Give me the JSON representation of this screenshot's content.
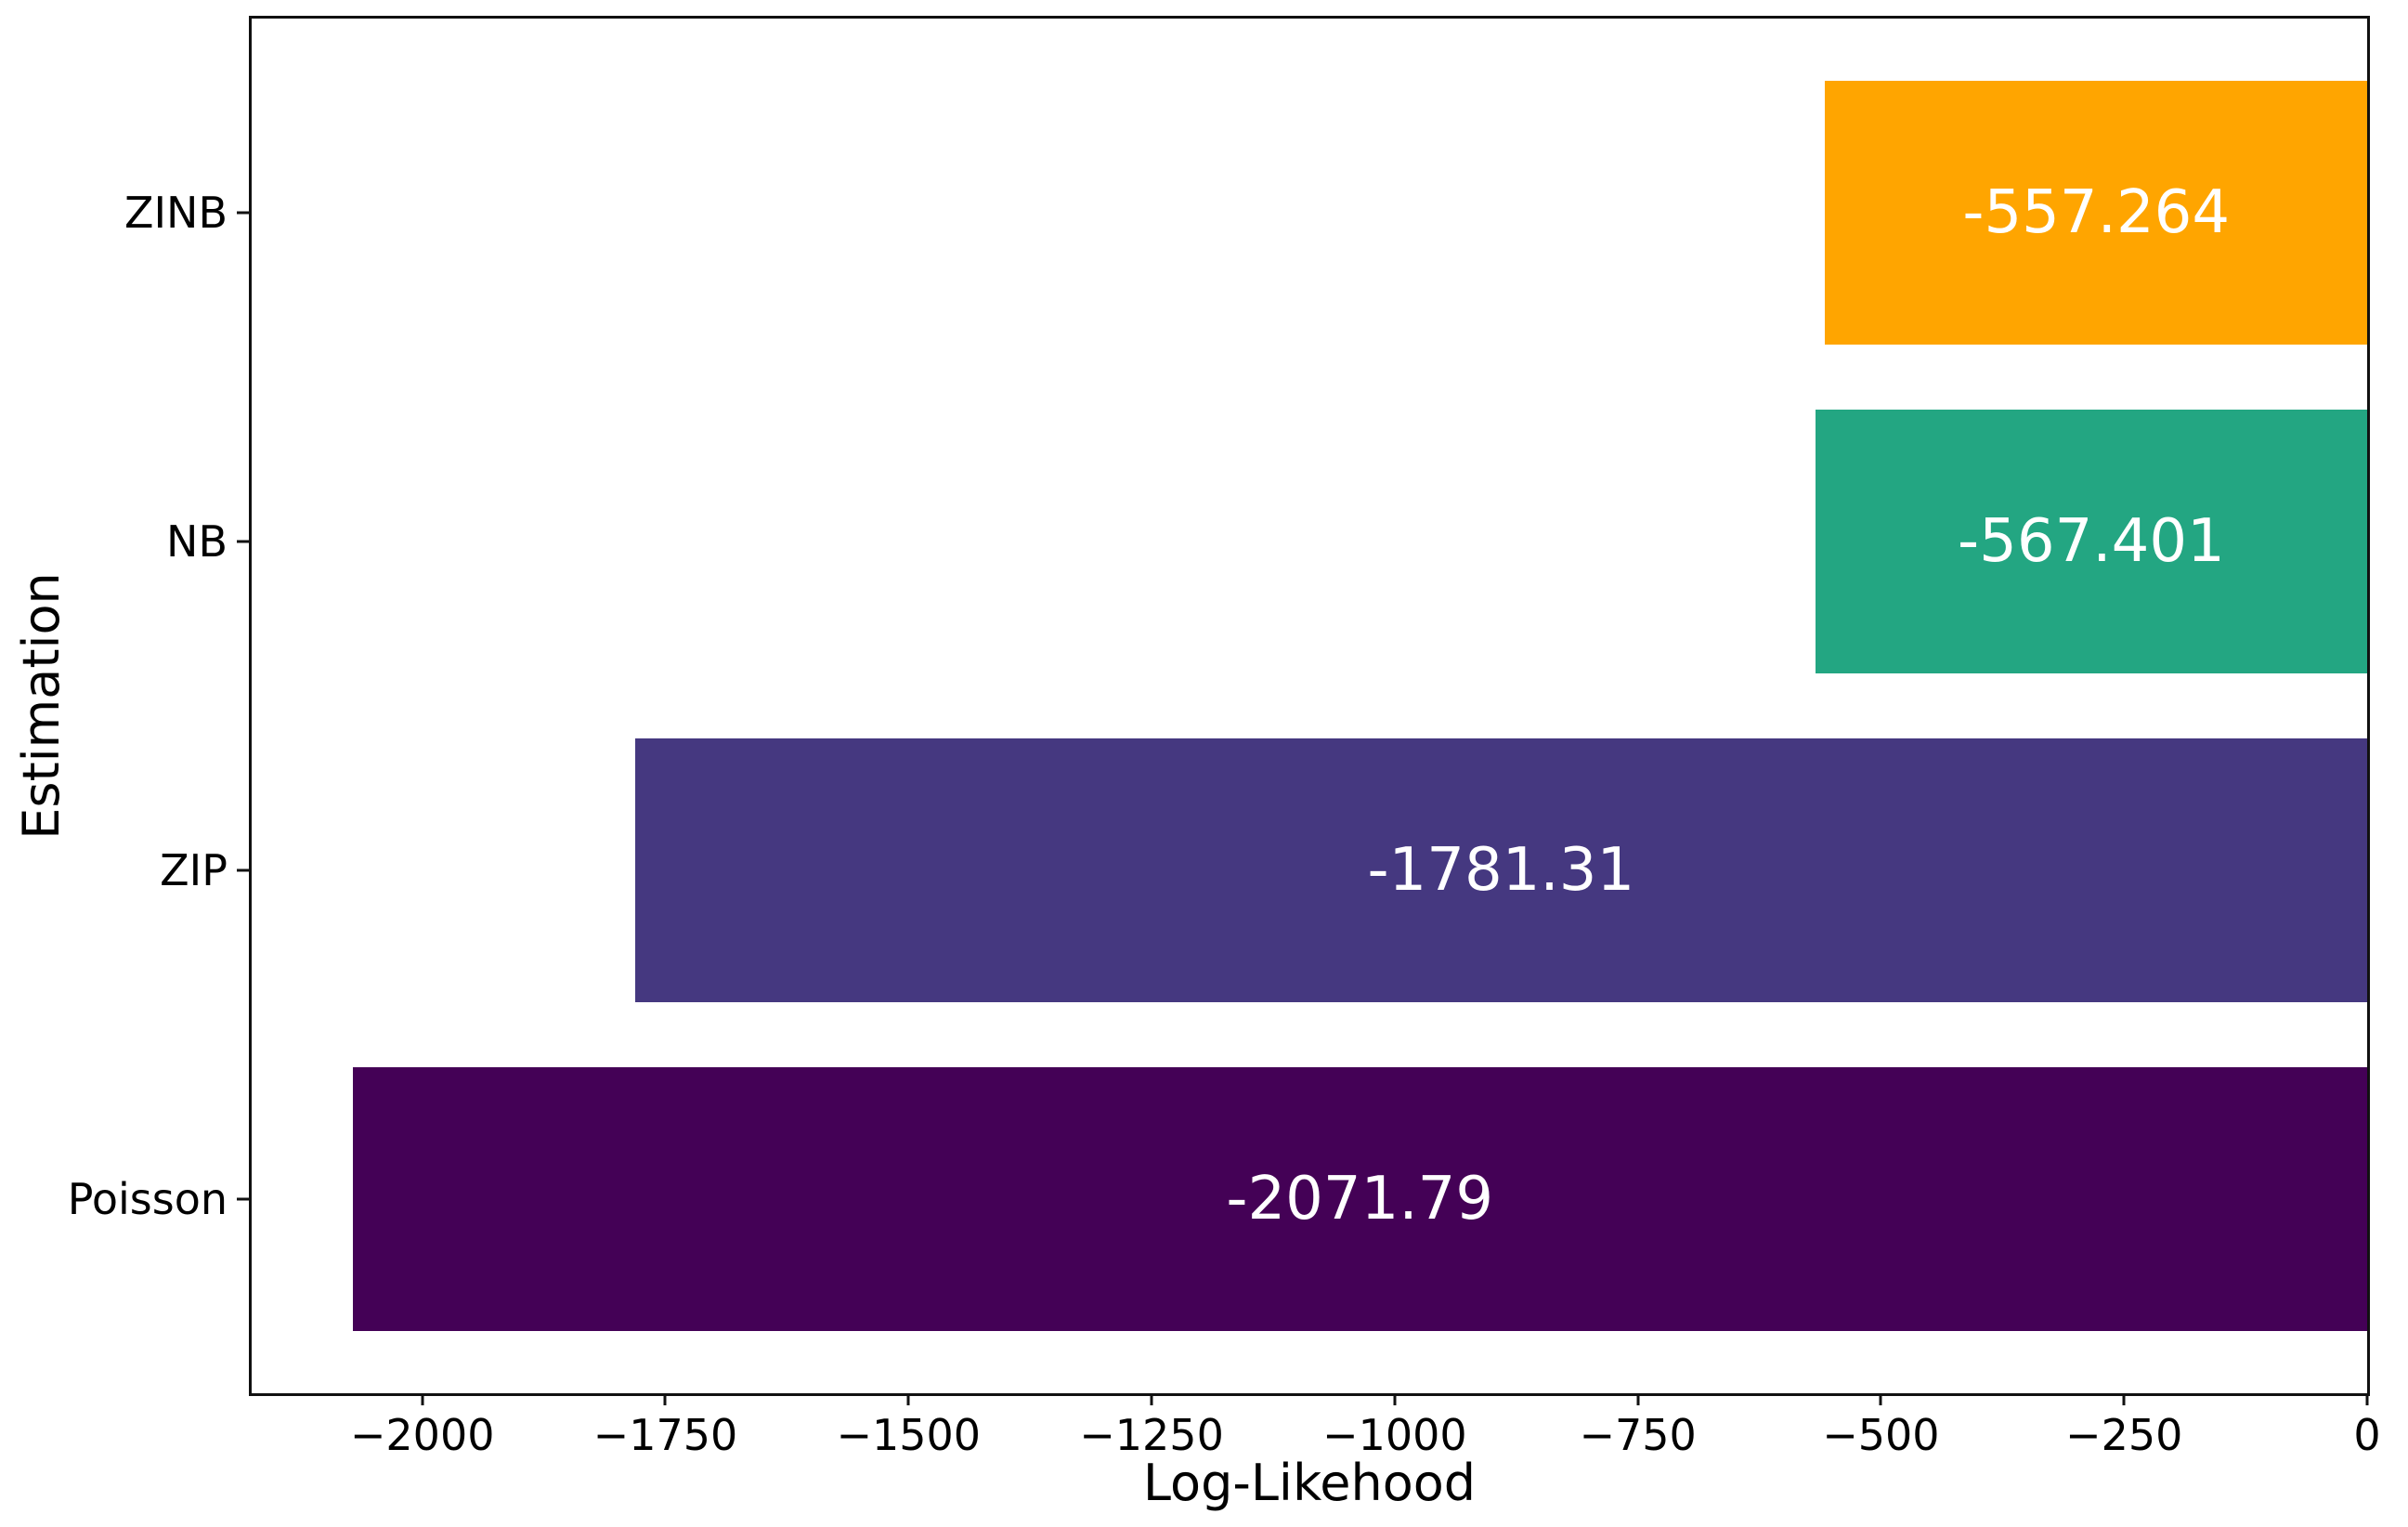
{
  "chart_data": {
    "type": "bar",
    "orientation": "horizontal",
    "title": "",
    "xlabel": "Log-Likehood",
    "ylabel": "Estimation",
    "categories": [
      "ZINB",
      "NB",
      "ZIP",
      "Poisson"
    ],
    "values": [
      -557.264,
      -567.401,
      -1781.31,
      -2071.79
    ],
    "bar_labels": [
      "-557.264",
      "-567.401",
      "-1781.31",
      "-2071.79"
    ],
    "bar_colors": [
      "#FFA500",
      "#23A682",
      "#453880",
      "#440156"
    ],
    "bar_label_color": "#ffffff",
    "xlim": [
      -2175.4,
      0
    ],
    "x_ticks": [
      -2000,
      -1750,
      -1500,
      -1250,
      -1000,
      -750,
      -500,
      -250,
      0
    ],
    "x_tick_labels": [
      "−2000",
      "−1750",
      "−1500",
      "−1250",
      "−1000",
      "−750",
      "−500",
      "−250",
      "0"
    ],
    "bar_height_fraction": 0.8,
    "axis_margin_fraction": 0.05,
    "grid": false,
    "legend": null,
    "background_color": "#ffffff",
    "spine_color": "#111111",
    "text_color": "#000000"
  }
}
